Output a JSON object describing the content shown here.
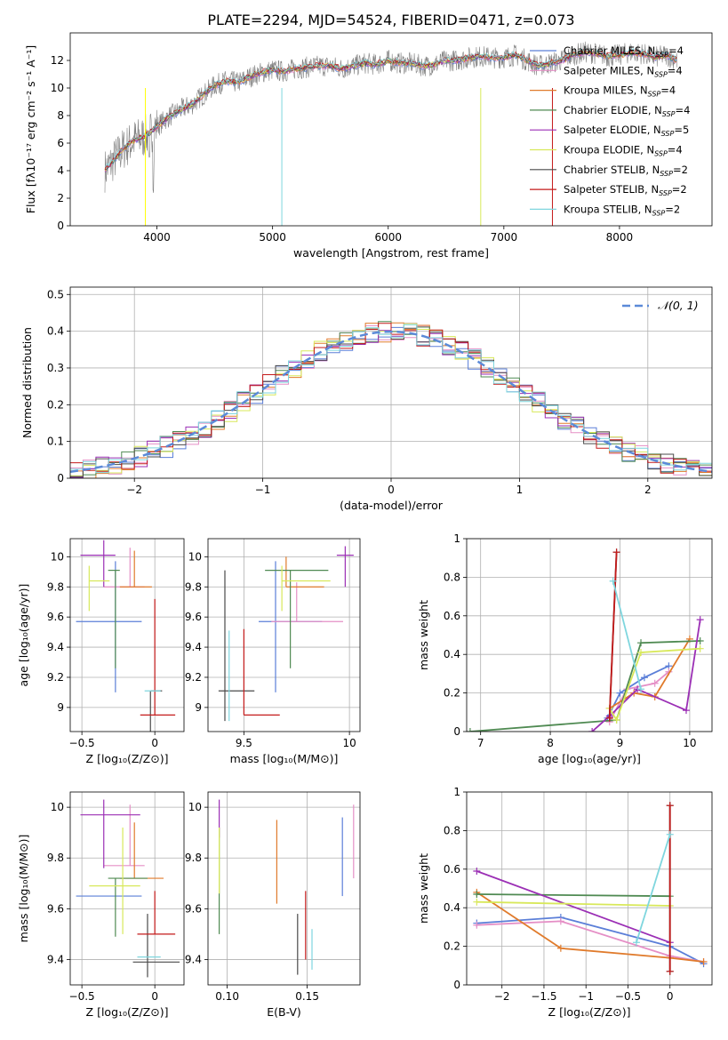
{
  "figure_title": "PLATE=2294, MJD=54524, FIBERID=0471, z=0.073",
  "models": [
    {
      "label": "Chabrier MILES, N",
      "sub": "SSP",
      "tail": "=4",
      "color": "#5b7fd8"
    },
    {
      "label": "Salpeter MILES, N",
      "sub": "SSP",
      "tail": "=4",
      "color": "#e58fc6"
    },
    {
      "label": "Kroupa MILES, N",
      "sub": "SSP",
      "tail": "=4",
      "color": "#e07b2c"
    },
    {
      "label": "Chabrier ELODIE, N",
      "sub": "SSP",
      "tail": "=4",
      "color": "#4f8a52"
    },
    {
      "label": "Salpeter ELODIE, N",
      "sub": "SSP",
      "tail": "=5",
      "color": "#9b2fb5"
    },
    {
      "label": "Kroupa ELODIE, N",
      "sub": "SSP",
      "tail": "=4",
      "color": "#d8e85a"
    },
    {
      "label": "Chabrier STELIB, N",
      "sub": "SSP",
      "tail": "=2",
      "color": "#4a4a4a"
    },
    {
      "label": "Salpeter STELIB, N",
      "sub": "SSP",
      "tail": "=2",
      "color": "#c41a1a"
    },
    {
      "label": "Kroupa STELIB, N",
      "sub": "SSP",
      "tail": "=2",
      "color": "#7fd6de"
    }
  ],
  "chart_data": [
    {
      "type": "line",
      "title": "PLATE=2294, MJD=54524, FIBERID=0471, z=0.073",
      "xlabel": "wavelength [Angstrom, rest frame]",
      "ylabel": "Flux [fλ10⁻¹⁷ erg cm⁻² s⁻¹ A⁻¹]",
      "xlim": [
        3250,
        8800
      ],
      "ylim": [
        0,
        14
      ],
      "xticks": [
        4000,
        5000,
        6000,
        7000,
        8000
      ],
      "yticks": [
        0,
        2,
        4,
        6,
        8,
        10,
        12
      ],
      "data_color": "#808080",
      "data_wavelengths": [
        3550,
        3600,
        3700,
        3800,
        3900,
        4000,
        4100,
        4200,
        4300,
        4400,
        4500,
        4600,
        4700,
        4800,
        4900,
        5000,
        5100,
        5200,
        5300,
        5400,
        5500,
        5600,
        5700,
        5800,
        5900,
        6000,
        6100,
        6200,
        6300,
        6400,
        6500,
        6600,
        6700,
        6800,
        6900,
        7000,
        7100,
        7200,
        7300,
        7400,
        7500,
        7600,
        7700,
        7800,
        7900,
        8000,
        8100,
        8200,
        8300,
        8400,
        8500
      ],
      "data_flux": [
        4.0,
        4.5,
        5.5,
        6.2,
        6.5,
        7.2,
        7.9,
        8.4,
        8.8,
        9.5,
        10.2,
        10.5,
        10.4,
        10.8,
        11.1,
        11.3,
        11.2,
        11.4,
        11.5,
        11.6,
        11.6,
        11.4,
        11.6,
        11.8,
        11.7,
        12.0,
        11.8,
        11.8,
        11.6,
        11.7,
        12.0,
        12.0,
        12.2,
        12.3,
        12.2,
        12.2,
        12.4,
        12.0,
        11.6,
        11.8,
        12.0,
        12.4,
        12.6,
        12.5,
        12.3,
        12.4,
        12.6,
        12.5,
        12.2,
        12.4,
        12.0
      ]
    },
    {
      "type": "line",
      "xlabel": "(data-model)/error",
      "ylabel": "Normed distribution",
      "xlim": [
        -2.5,
        2.5
      ],
      "ylim": [
        0,
        0.52
      ],
      "xticks": [
        -2,
        -1,
        0,
        1,
        2
      ],
      "yticks": [
        0.0,
        0.1,
        0.2,
        0.3,
        0.4,
        0.5
      ],
      "legend": "𝒩(0, 1)",
      "gaussian_color": "#5b8ad8",
      "histogram_approx": "standard normal step histograms, one per model, bin width 0.1"
    },
    {
      "type": "scatter",
      "xlabel": "Z [log₁₀(Z/Z⊙)]",
      "ylabel": "age  [log₁₀(age/yr)]",
      "xlim": [
        -0.58,
        0.2
      ],
      "ylim": [
        8.84,
        10.12
      ],
      "xticks": [
        -0.5,
        0.0
      ],
      "yticks": [
        9.0,
        9.2,
        9.4,
        9.6,
        9.8,
        10.0
      ],
      "points": [
        {
          "model": 0,
          "x": -0.27,
          "xerr": [
            0.27,
            0.18
          ],
          "y": 9.57,
          "yerr": [
            0.47,
            0.4
          ]
        },
        {
          "model": 1,
          "x": -0.17,
          "xerr": [
            0.18,
            0.1
          ],
          "y": 9.8,
          "yerr": [
            0.0,
            0.26
          ]
        },
        {
          "model": 2,
          "x": -0.14,
          "xerr": [
            0.1,
            0.12
          ],
          "y": 9.8,
          "yerr": [
            0.0,
            0.24
          ]
        },
        {
          "model": 3,
          "x": -0.27,
          "xerr": [
            0.05,
            0.03
          ],
          "y": 9.91,
          "yerr": [
            0.65,
            0.0
          ]
        },
        {
          "model": 4,
          "x": -0.35,
          "xerr": [
            0.16,
            0.08
          ],
          "y": 10.01,
          "yerr": [
            0.21,
            0.1
          ]
        },
        {
          "model": 5,
          "x": -0.45,
          "xerr": [
            0.0,
            0.14
          ],
          "y": 9.84,
          "yerr": [
            0.2,
            0.1
          ]
        },
        {
          "model": 6,
          "x": -0.03,
          "xerr": [
            0.0,
            0.08
          ],
          "y": 9.11,
          "yerr": [
            0.8,
            0.0
          ]
        },
        {
          "model": 7,
          "x": 0.0,
          "xerr": [
            0.1,
            0.14
          ],
          "y": 8.95,
          "yerr": [
            0.0,
            0.77
          ]
        },
        {
          "model": 8,
          "x": -0.02,
          "xerr": [
            0.05,
            0.06
          ],
          "y": 9.11,
          "yerr": [
            0.0,
            0.0
          ]
        }
      ]
    },
    {
      "type": "scatter",
      "xlabel": "mass [log₁₀(M/M⊙)]",
      "ylabel": "",
      "xlim": [
        9.33,
        10.05
      ],
      "ylim": [
        8.84,
        10.12
      ],
      "xticks": [
        9.5,
        10.0
      ],
      "yticks": [
        9.0,
        9.2,
        9.4,
        9.6,
        9.8,
        10.0
      ]
    },
    {
      "type": "line",
      "xlabel": "age  [log₁₀(age/yr)]",
      "ylabel": "mass weight",
      "xlim": [
        6.8,
        10.32
      ],
      "ylim": [
        0,
        1
      ],
      "xticks": [
        7,
        8,
        9,
        10
      ],
      "yticks": [
        0.0,
        0.2,
        0.4,
        0.6,
        0.8,
        1.0
      ],
      "series": [
        {
          "model": 0,
          "x": [
            8.82,
            9.0,
            9.35,
            9.7
          ],
          "y": [
            0.07,
            0.2,
            0.28,
            0.34
          ]
        },
        {
          "model": 1,
          "x": [
            8.85,
            9.1,
            9.5,
            9.7
          ],
          "y": [
            0.05,
            0.22,
            0.25,
            0.31
          ]
        },
        {
          "model": 2,
          "x": [
            8.85,
            9.2,
            9.5,
            10.0
          ],
          "y": [
            0.12,
            0.2,
            0.18,
            0.48
          ]
        },
        {
          "model": 3,
          "x": [
            6.85,
            8.95,
            9.3,
            10.15
          ],
          "y": [
            0.0,
            0.06,
            0.46,
            0.47
          ]
        },
        {
          "model": 4,
          "x": [
            8.6,
            8.85,
            9.25,
            9.95,
            10.15
          ],
          "y": [
            0.0,
            0.08,
            0.22,
            0.11,
            0.58
          ]
        },
        {
          "model": 5,
          "x": [
            8.85,
            8.95,
            9.3,
            10.15
          ],
          "y": [
            0.12,
            0.06,
            0.41,
            0.43
          ]
        },
        {
          "model": 6,
          "x": [
            8.85,
            8.95
          ],
          "y": [
            0.07,
            0.93
          ]
        },
        {
          "model": 7,
          "x": [
            8.85,
            8.95
          ],
          "y": [
            0.07,
            0.93
          ]
        },
        {
          "model": 8,
          "x": [
            8.9,
            9.3
          ],
          "y": [
            0.78,
            0.22
          ]
        }
      ]
    },
    {
      "type": "scatter",
      "xlabel": "Z [log₁₀(Z/Z⊙)]",
      "ylabel": "mass [log₁₀(M/M⊙)]",
      "xlim": [
        -0.58,
        0.2
      ],
      "ylim": [
        9.3,
        10.06
      ],
      "xticks": [
        -0.5,
        0.0
      ],
      "yticks": [
        9.4,
        9.6,
        9.8,
        10.0
      ]
    },
    {
      "type": "scatter",
      "xlabel": "E(B-V)",
      "ylabel": "",
      "xlim": [
        0.088,
        0.183
      ],
      "ylim": [
        9.3,
        10.06
      ],
      "xticks": [
        0.1,
        0.15
      ],
      "yticks": [
        9.4,
        9.6,
        9.8,
        10.0
      ],
      "points": [
        {
          "model": 0,
          "x": 0.172,
          "ylo": 9.65,
          "yhi": 9.96
        },
        {
          "model": 1,
          "x": 0.179,
          "ylo": 9.72,
          "yhi": 10.01
        },
        {
          "model": 2,
          "x": 0.131,
          "ylo": 9.62,
          "yhi": 9.95
        },
        {
          "model": 3,
          "x": 0.095,
          "ylo": 9.5,
          "yhi": 9.92
        },
        {
          "model": 4,
          "x": 0.095,
          "ylo": 9.88,
          "yhi": 10.03
        },
        {
          "model": 5,
          "x": 0.095,
          "ylo": 9.66,
          "yhi": 9.92
        },
        {
          "model": 6,
          "x": 0.144,
          "ylo": 9.34,
          "yhi": 9.58
        },
        {
          "model": 7,
          "x": 0.149,
          "ylo": 9.4,
          "yhi": 9.67
        },
        {
          "model": 8,
          "x": 0.153,
          "ylo": 9.36,
          "yhi": 9.52
        }
      ]
    },
    {
      "type": "line",
      "xlabel": "Z [log₁₀(Z/Z⊙)]",
      "ylabel": "mass weight",
      "xlim": [
        -2.42,
        0.5
      ],
      "ylim": [
        0,
        1
      ],
      "xticks": [
        -2.0,
        -1.5,
        -1.0,
        -0.5,
        0.0
      ],
      "yticks": [
        0.0,
        0.2,
        0.4,
        0.6,
        0.8,
        1.0
      ],
      "series": [
        {
          "model": 0,
          "x": [
            -2.3,
            -1.3,
            0.0,
            0.4
          ],
          "y": [
            0.32,
            0.35,
            0.2,
            0.11
          ]
        },
        {
          "model": 1,
          "x": [
            -2.3,
            -1.3,
            0.0,
            0.4
          ],
          "y": [
            0.31,
            0.33,
            0.15,
            0.12
          ]
        },
        {
          "model": 2,
          "x": [
            -2.3,
            -1.3,
            0.0,
            0.4
          ],
          "y": [
            0.48,
            0.19,
            0.14,
            0.12
          ]
        },
        {
          "model": 3,
          "x": [
            -2.3,
            0.0
          ],
          "y": [
            0.47,
            0.46
          ]
        },
        {
          "model": 4,
          "x": [
            -2.3,
            0.0
          ],
          "y": [
            0.59,
            0.22
          ]
        },
        {
          "model": 5,
          "x": [
            -2.3,
            0.0
          ],
          "y": [
            0.43,
            0.41
          ]
        },
        {
          "model": 6,
          "x": [
            0.0,
            0.0
          ],
          "y": [
            0.07,
            0.93
          ]
        },
        {
          "model": 7,
          "x": [
            0.0,
            0.0
          ],
          "y": [
            0.07,
            0.93
          ]
        },
        {
          "model": 8,
          "x": [
            -0.4,
            0.0
          ],
          "y": [
            0.22,
            0.78
          ]
        }
      ]
    }
  ]
}
